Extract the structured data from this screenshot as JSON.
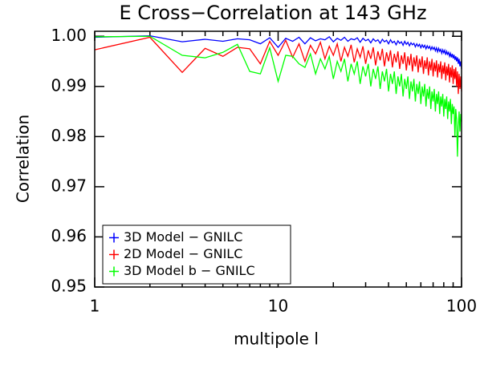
{
  "chart_data": {
    "type": "line",
    "title": "E Cross−Correlation at 143 GHz",
    "x_label": "multipole l",
    "y_label": "Correlation",
    "x_scale": "log",
    "xlim": [
      1,
      100
    ],
    "xticks": [
      1,
      10,
      100
    ],
    "xminorticks": [
      2,
      3,
      4,
      5,
      6,
      7,
      8,
      9,
      20,
      30,
      40,
      50,
      60,
      70,
      80,
      90
    ],
    "ylim": [
      0.95,
      1.001
    ],
    "yticks": [
      0.95,
      0.96,
      0.97,
      0.98,
      0.99,
      {
        "value": 1,
        "label": "1.00"
      }
    ],
    "legend": "lower-left",
    "x": [
      1,
      2,
      3,
      4,
      5,
      6,
      7,
      8,
      9,
      10,
      11,
      12,
      13,
      14,
      15,
      16,
      17,
      18,
      19,
      20,
      21,
      22,
      23,
      24,
      25,
      26,
      27,
      28,
      29,
      30,
      31,
      32,
      33,
      34,
      35,
      36,
      37,
      38,
      39,
      40,
      41,
      42,
      43,
      44,
      45,
      46,
      47,
      48,
      49,
      50,
      51,
      52,
      53,
      54,
      55,
      56,
      57,
      58,
      59,
      60,
      61,
      62,
      63,
      64,
      65,
      66,
      67,
      68,
      69,
      70,
      71,
      72,
      73,
      74,
      75,
      76,
      77,
      78,
      79,
      80,
      81,
      82,
      83,
      84,
      85,
      86,
      87,
      88,
      89,
      90,
      91,
      92,
      93,
      94,
      95,
      96,
      97,
      98,
      99,
      100
    ],
    "series": [
      {
        "name": "3D Model − GNILC",
        "color": "#0000ff",
        "values": [
          0.9998,
          1.0001,
          0.9989,
          0.9994,
          0.999,
          0.9995,
          0.9993,
          0.9985,
          0.9997,
          0.9978,
          0.9996,
          0.999,
          0.9998,
          0.9985,
          0.9997,
          0.9991,
          0.9995,
          0.9993,
          0.9999,
          0.9989,
          0.9996,
          0.9992,
          0.9998,
          0.999,
          0.9995,
          0.9993,
          0.9997,
          0.9988,
          0.9996,
          0.9991,
          0.9994,
          0.9987,
          0.9995,
          0.999,
          0.9993,
          0.9986,
          0.9994,
          0.9989,
          0.9992,
          0.9985,
          0.9993,
          0.9987,
          0.999,
          0.9983,
          0.9991,
          0.9986,
          0.9989,
          0.9982,
          0.999,
          0.9984,
          0.9988,
          0.9981,
          0.9987,
          0.9983,
          0.9986,
          0.9979,
          0.9985,
          0.998,
          0.9984,
          0.9977,
          0.9983,
          0.9978,
          0.9982,
          0.9975,
          0.9981,
          0.9976,
          0.998,
          0.9973,
          0.9979,
          0.9974,
          0.9978,
          0.9971,
          0.9977,
          0.9969,
          0.9976,
          0.997,
          0.9974,
          0.9966,
          0.9973,
          0.9967,
          0.9972,
          0.9963,
          0.997,
          0.9964,
          0.9968,
          0.996,
          0.9966,
          0.9958,
          0.9965,
          0.9956,
          0.9963,
          0.9953,
          0.996,
          0.995,
          0.9958,
          0.9945,
          0.9955,
          0.994,
          0.995,
          0.9935
        ]
      },
      {
        "name": "2D Model − GNILC",
        "color": "#ff0000",
        "values": [
          0.9973,
          0.9998,
          0.9928,
          0.9976,
          0.996,
          0.9978,
          0.9975,
          0.9945,
          0.999,
          0.9962,
          0.9992,
          0.9958,
          0.9985,
          0.995,
          0.9982,
          0.9965,
          0.9988,
          0.9955,
          0.998,
          0.9962,
          0.9985,
          0.995,
          0.9978,
          0.996,
          0.9983,
          0.9948,
          0.9975,
          0.9958,
          0.998,
          0.9945,
          0.9972,
          0.9955,
          0.9978,
          0.9942,
          0.997,
          0.9952,
          0.9975,
          0.994,
          0.9968,
          0.995,
          0.9972,
          0.9938,
          0.9965,
          0.9948,
          0.997,
          0.9935,
          0.9962,
          0.9945,
          0.9968,
          0.9932,
          0.996,
          0.9942,
          0.9965,
          0.993,
          0.9958,
          0.994,
          0.9962,
          0.9928,
          0.9955,
          0.9938,
          0.996,
          0.9925,
          0.9952,
          0.9935,
          0.9958,
          0.9922,
          0.995,
          0.9932,
          0.9955,
          0.992,
          0.9948,
          0.993,
          0.9952,
          0.9918,
          0.9945,
          0.9928,
          0.995,
          0.9915,
          0.9942,
          0.9925,
          0.9948,
          0.9912,
          0.994,
          0.9922,
          0.9945,
          0.9908,
          0.9938,
          0.9918,
          0.9942,
          0.9905,
          0.9935,
          0.9915,
          0.9938,
          0.99,
          0.993,
          0.9885,
          0.9925,
          0.9895,
          0.992,
          0.989
        ]
      },
      {
        "name": "3D Model b − GNILC",
        "color": "#00ff00",
        "values": [
          0.9999,
          1.0,
          0.9962,
          0.9957,
          0.9968,
          0.9984,
          0.993,
          0.9925,
          0.9977,
          0.991,
          0.9962,
          0.996,
          0.9945,
          0.9938,
          0.9965,
          0.9925,
          0.9955,
          0.9935,
          0.996,
          0.9915,
          0.995,
          0.993,
          0.9955,
          0.991,
          0.9945,
          0.9925,
          0.995,
          0.9905,
          0.994,
          0.992,
          0.9945,
          0.99,
          0.9935,
          0.9915,
          0.994,
          0.9895,
          0.993,
          0.991,
          0.9935,
          0.989,
          0.9925,
          0.9905,
          0.993,
          0.9885,
          0.992,
          0.99,
          0.9925,
          0.988,
          0.9915,
          0.9895,
          0.992,
          0.9875,
          0.991,
          0.989,
          0.9915,
          0.987,
          0.9905,
          0.9885,
          0.991,
          0.9865,
          0.99,
          0.988,
          0.9905,
          0.986,
          0.9895,
          0.9875,
          0.99,
          0.9855,
          0.989,
          0.987,
          0.9895,
          0.985,
          0.9885,
          0.9865,
          0.989,
          0.9845,
          0.988,
          0.986,
          0.9885,
          0.984,
          0.9875,
          0.9855,
          0.988,
          0.9835,
          0.987,
          0.985,
          0.9875,
          0.9825,
          0.9865,
          0.9845,
          0.986,
          0.98,
          0.9855,
          0.9835,
          0.976,
          0.982,
          0.985,
          0.981,
          0.9845,
          0.983
        ]
      }
    ]
  }
}
